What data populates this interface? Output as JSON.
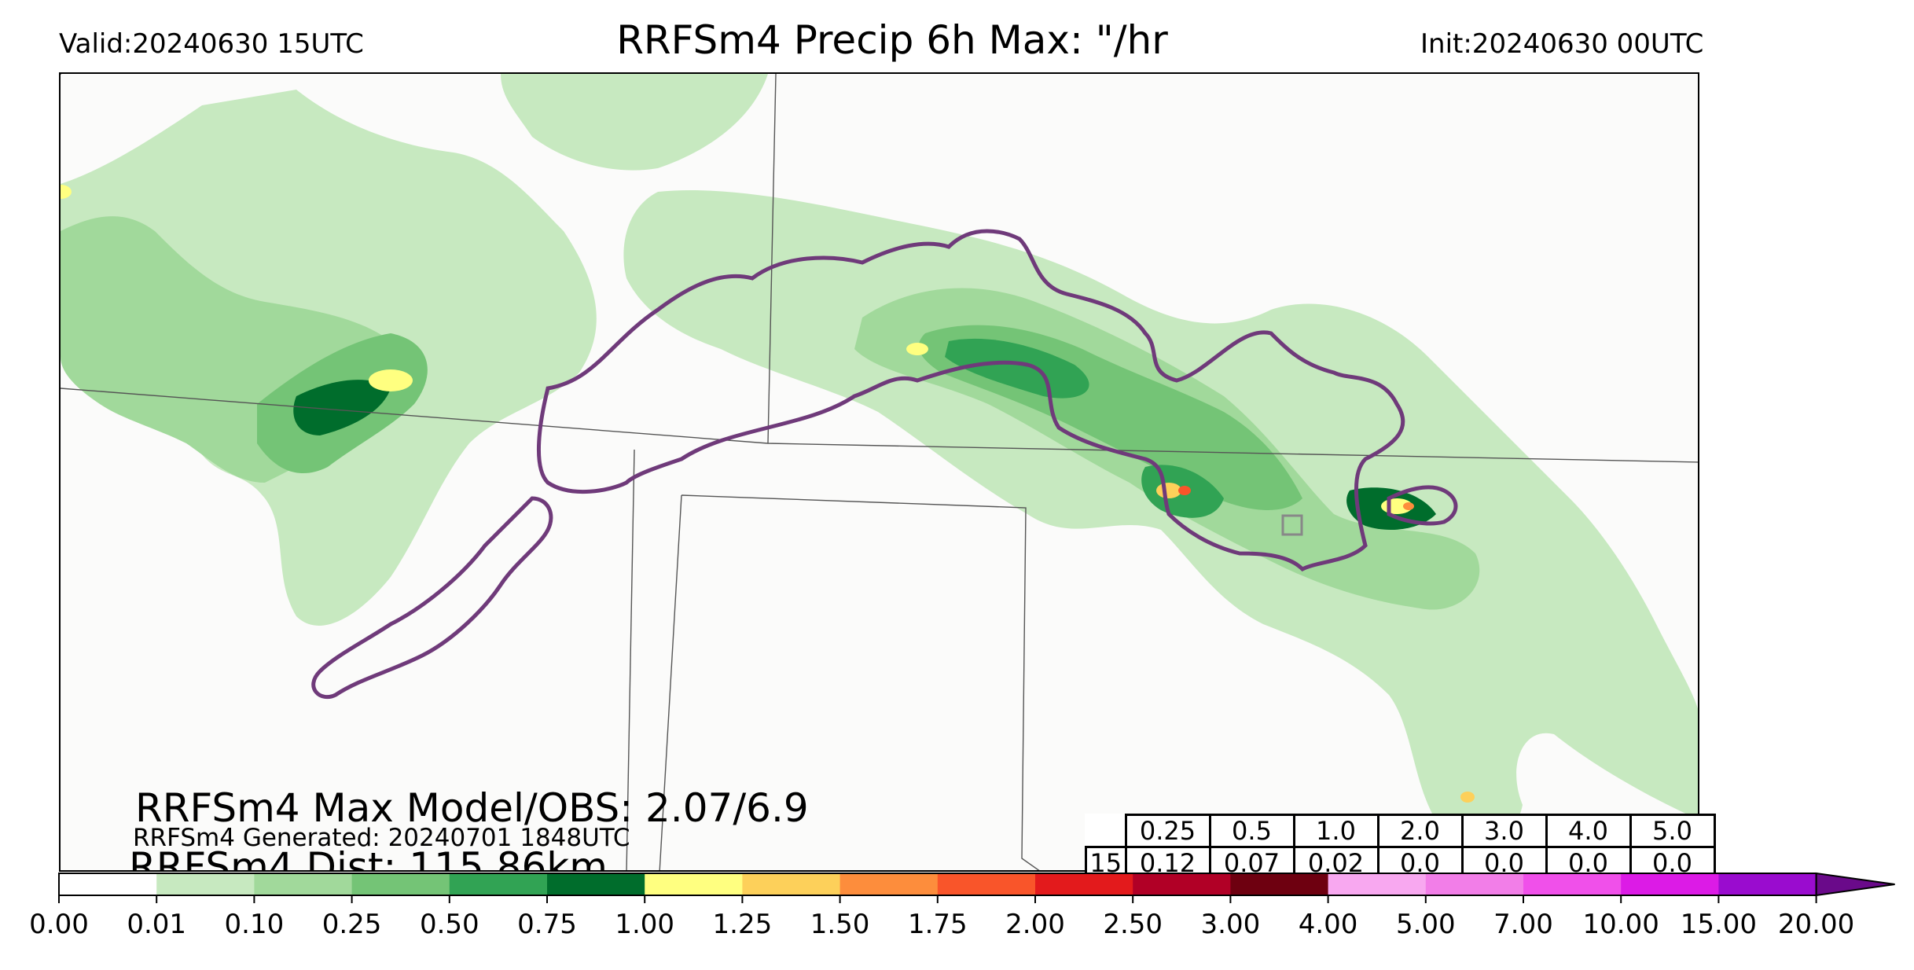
{
  "header": {
    "valid": "Valid:20240630 15UTC",
    "title": "RRFSm4 Precip 6h Max: \"/hr",
    "init": "Init:20240630 00UTC"
  },
  "annotations": {
    "max_model_obs": "RRFSm4 Max Model/OBS: 2.07/6.9",
    "generated": "RRFSm4 Generated: 20240701 1848UTC",
    "distance": "RRFSm4 Dist: 115.86km"
  },
  "stats_table": {
    "thresholds": [
      "0.25",
      "0.5",
      "1.0",
      "2.0",
      "3.0",
      "4.0",
      "5.0"
    ],
    "row_label": "15",
    "values": [
      "0.12",
      "0.07",
      "0.02",
      "0.0",
      "0.0",
      "0.0",
      "0.0"
    ]
  },
  "colorbar": {
    "ticks": [
      "0.00",
      "0.01",
      "0.10",
      "0.25",
      "0.50",
      "0.75",
      "1.00",
      "1.25",
      "1.50",
      "1.75",
      "2.00",
      "2.50",
      "3.00",
      "4.00",
      "5.00",
      "7.00",
      "10.00",
      "15.00",
      "20.00"
    ],
    "colors": [
      "#ffffff",
      "#c7e9c0",
      "#a1d99b",
      "#74c476",
      "#31a354",
      "#006d2c",
      "#ffff80",
      "#fdd05a",
      "#fd8d3c",
      "#f9552a",
      "#e31a1c",
      "#b10026",
      "#6e0010",
      "#f8a8f0",
      "#f27ee8",
      "#f050ea",
      "#dc1be6",
      "#9a0ccf",
      "#6a0a8a"
    ],
    "extend_color": "#6a0a8a"
  },
  "map": {
    "precip_colors": [
      "#c7e9c0",
      "#a1d99b",
      "#74c476",
      "#31a354",
      "#006d2c",
      "#ffff80",
      "#fdd05a",
      "#fd8d3c",
      "#f9552a"
    ],
    "observed_contour_color": "#6f3a7a",
    "state_line_color": "#444444"
  }
}
